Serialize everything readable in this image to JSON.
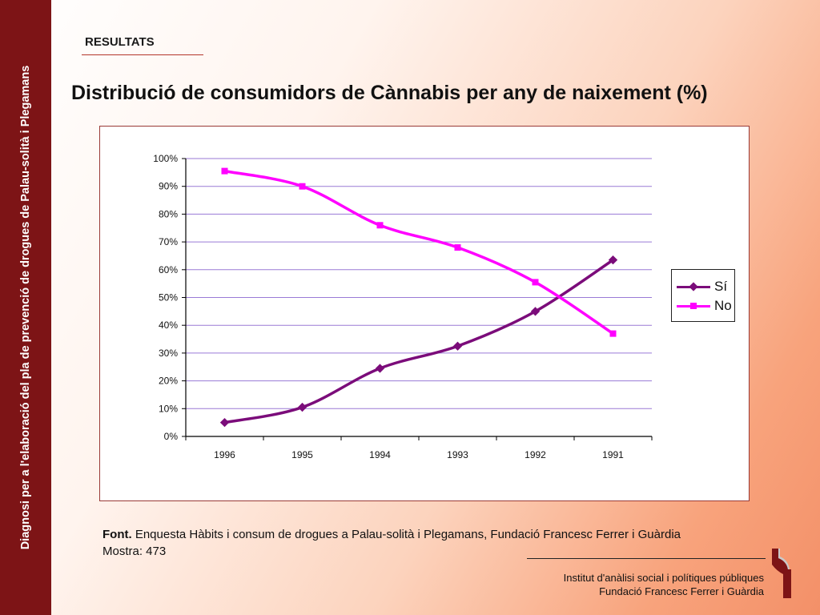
{
  "sidebar": {
    "text": "Diagnosi per a l'elaboració del pla de prevenció de drogues de Palau-solità i Plegamans"
  },
  "header": {
    "section": "RESULTATS",
    "title": "Distribució de consumidors de Cànnabis per any de naixement (%)"
  },
  "chart_data": {
    "type": "line",
    "categories": [
      "1996",
      "1995",
      "1994",
      "1993",
      "1992",
      "1991"
    ],
    "series": [
      {
        "name": "Sí",
        "values": [
          5,
          10.5,
          24.5,
          32.5,
          45,
          63.5
        ],
        "color": "#7b0c7a",
        "marker": "diamond"
      },
      {
        "name": "No",
        "values": [
          95.5,
          90,
          76,
          68,
          55.5,
          37
        ],
        "color": "#ff00ff",
        "marker": "square"
      }
    ],
    "ylim": [
      0,
      100
    ],
    "yticks": [
      "0%",
      "10%",
      "20%",
      "30%",
      "40%",
      "50%",
      "60%",
      "70%",
      "80%",
      "90%",
      "100%"
    ],
    "grid": true,
    "gridline_color": "#9a7ad6",
    "smooth": true,
    "legend": "right"
  },
  "footer": {
    "source_label": "Font.",
    "source_text": "Enquesta Hàbits i consum de drogues a Palau-solità i Plegamans, Fundació Francesc Ferrer i Guàrdia",
    "sample": "Mostra: 473",
    "institution_line1": "Institut d'anàlisi social i polítiques públiques",
    "institution_line2": "Fundació Francesc Ferrer i Guàrdia"
  },
  "colors": {
    "sidebar": "#7d1416",
    "accent": "#b3362b"
  },
  "logo_icon": "institute-logo-icon"
}
